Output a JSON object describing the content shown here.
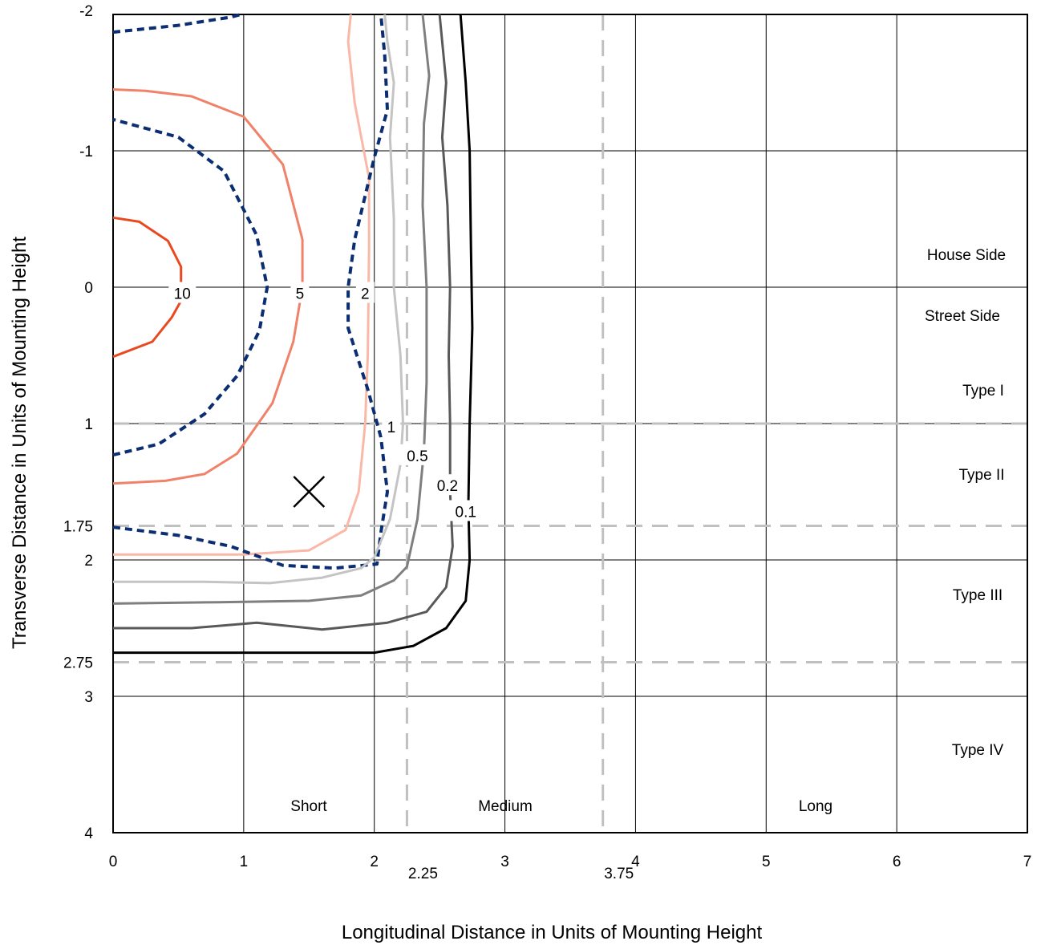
{
  "chart_data": {
    "type": "contour",
    "xlabel": "Longitudinal Distance in Units of Mounting Height",
    "ylabel": "Transverse Distance in Units of Mounting Height",
    "xlim": [
      0,
      7
    ],
    "ylim": [
      -2,
      4
    ],
    "y_axis_inverted": true,
    "grid": true,
    "x_ticks": [
      "0",
      "1",
      "2",
      "3",
      "4",
      "5",
      "6",
      "7"
    ],
    "y_ticks": [
      "-2",
      "-1",
      "0",
      "1",
      "2",
      "3",
      "4"
    ],
    "extra_x_ticks": [
      {
        "value": 2.25,
        "label": "2.25"
      },
      {
        "value": 3.75,
        "label": "3.75"
      }
    ],
    "extra_y_ticks": [
      {
        "value": 1.75,
        "label": "1.75"
      },
      {
        "value": 2.75,
        "label": "2.75"
      }
    ],
    "reference_lines": {
      "vertical": [
        2.25,
        3.75
      ],
      "horizontal": [
        1,
        1.75,
        2.75
      ],
      "color": "#c0c0c0"
    },
    "region_labels": {
      "house_side": "House Side",
      "street_side": "Street Side",
      "type_1": "Type I",
      "type_2": "Type II",
      "type_3": "Type III",
      "type_4": "Type IV",
      "short": "Short",
      "medium": "Medium",
      "long": "Long"
    },
    "max_candela_marker": {
      "x": 1.5,
      "y": 1.5,
      "symbol": "X"
    },
    "series": [
      {
        "label": "10",
        "color": "#e8491f",
        "dash": false,
        "points": [
          [
            0,
            0.51
          ],
          [
            0.3,
            0.4
          ],
          [
            0.45,
            0.22
          ],
          [
            0.52,
            0.1
          ],
          [
            0.52,
            -0.15
          ],
          [
            0.42,
            -0.34
          ],
          [
            0.2,
            -0.48
          ],
          [
            0,
            -0.51
          ]
        ],
        "label_at": [
          0.53,
          0.05
        ]
      },
      {
        "label": "5",
        "color": "#f0826a",
        "dash": false,
        "points": [
          [
            0,
            1.44
          ],
          [
            0.4,
            1.42
          ],
          [
            0.7,
            1.37
          ],
          [
            0.95,
            1.22
          ],
          [
            1.22,
            0.85
          ],
          [
            1.38,
            0.4
          ],
          [
            1.45,
            0
          ],
          [
            1.45,
            -0.35
          ],
          [
            1.3,
            -0.9
          ],
          [
            1.0,
            -1.25
          ],
          [
            0.6,
            -1.4
          ],
          [
            0.25,
            -1.44
          ],
          [
            0,
            -1.45
          ]
        ],
        "label_at": [
          1.43,
          0.05
        ]
      },
      {
        "label": "2",
        "color": "#f9b8a8",
        "dash": false,
        "points": [
          [
            0,
            1.96
          ],
          [
            0.3,
            1.96
          ],
          [
            1.0,
            1.96
          ],
          [
            1.5,
            1.93
          ],
          [
            1.78,
            1.78
          ],
          [
            1.88,
            1.5
          ],
          [
            1.93,
            1.0
          ],
          [
            1.95,
            0.5
          ],
          [
            1.96,
            -0.3
          ],
          [
            1.96,
            -0.8
          ],
          [
            1.9,
            -1.1
          ],
          [
            1.85,
            -1.35
          ],
          [
            1.8,
            -1.8
          ],
          [
            1.82,
            -2.0
          ]
        ],
        "label_at": [
          1.93,
          0.05
        ]
      },
      {
        "label": "2",
        "color": "#0b2d72",
        "dash": true,
        "points": [
          [
            0,
            1.23
          ],
          [
            0.35,
            1.15
          ],
          [
            0.7,
            0.93
          ],
          [
            0.95,
            0.65
          ],
          [
            1.12,
            0.32
          ],
          [
            1.18,
            0
          ],
          [
            1.1,
            -0.38
          ],
          [
            0.85,
            -0.85
          ],
          [
            0.5,
            -1.1
          ],
          [
            0.0,
            -1.23
          ],
          [
            0,
            -1.23
          ]
        ],
        "label_at": null
      },
      {
        "label": "",
        "color": "#0b2d72",
        "dash": true,
        "points": [
          [
            0,
            -1.87
          ],
          [
            0.5,
            -1.92
          ],
          [
            0.9,
            -1.98
          ],
          [
            0.98,
            -2.0
          ]
        ],
        "label_at": null
      },
      {
        "label": "",
        "color": "#0b2d72",
        "dash": true,
        "points": [
          [
            0,
            1.76
          ],
          [
            0.5,
            1.82
          ],
          [
            0.9,
            1.9
          ],
          [
            1.3,
            2.04
          ],
          [
            1.7,
            2.06
          ],
          [
            2.02,
            2.03
          ],
          [
            2.05,
            1.8
          ],
          [
            2.1,
            1.5
          ],
          [
            2.05,
            1.1
          ],
          [
            1.95,
            0.75
          ],
          [
            1.8,
            0.3
          ],
          [
            1.8,
            0
          ],
          [
            1.85,
            -0.35
          ],
          [
            2.0,
            -0.95
          ],
          [
            2.1,
            -1.3
          ],
          [
            2.08,
            -1.7
          ],
          [
            2.05,
            -2.0
          ]
        ],
        "label_at": null
      },
      {
        "label": "1",
        "color": "#c4c4c4",
        "dash": false,
        "points": [
          [
            0,
            2.16
          ],
          [
            0.7,
            2.16
          ],
          [
            1.2,
            2.17
          ],
          [
            1.6,
            2.13
          ],
          [
            1.9,
            2.06
          ],
          [
            2.0,
            1.98
          ],
          [
            2.12,
            1.7
          ],
          [
            2.2,
            1.3
          ],
          [
            2.22,
            1.0
          ],
          [
            2.2,
            0.5
          ],
          [
            2.15,
            0
          ],
          [
            2.15,
            -0.5
          ],
          [
            2.12,
            -1.1
          ],
          [
            2.15,
            -1.5
          ],
          [
            2.1,
            -1.8
          ],
          [
            2.08,
            -2.0
          ]
        ],
        "label_at": [
          2.13,
          1.03
        ]
      },
      {
        "label": "0.5",
        "color": "#7f7f7f",
        "dash": false,
        "points": [
          [
            0,
            2.32
          ],
          [
            0.8,
            2.31
          ],
          [
            1.5,
            2.3
          ],
          [
            1.9,
            2.26
          ],
          [
            2.15,
            2.15
          ],
          [
            2.25,
            2.05
          ],
          [
            2.33,
            1.7
          ],
          [
            2.38,
            1.2
          ],
          [
            2.4,
            0.7
          ],
          [
            2.4,
            0
          ],
          [
            2.37,
            -0.6
          ],
          [
            2.38,
            -1.2
          ],
          [
            2.42,
            -1.55
          ],
          [
            2.37,
            -2.0
          ]
        ],
        "label_at": [
          2.33,
          1.24
        ]
      },
      {
        "label": "0.2",
        "color": "#595959",
        "dash": false,
        "points": [
          [
            0,
            2.5
          ],
          [
            0.6,
            2.5
          ],
          [
            1.1,
            2.46
          ],
          [
            1.6,
            2.51
          ],
          [
            2.1,
            2.46
          ],
          [
            2.4,
            2.38
          ],
          [
            2.55,
            2.2
          ],
          [
            2.6,
            1.9
          ],
          [
            2.58,
            1.5
          ],
          [
            2.58,
            1.0
          ],
          [
            2.57,
            0.5
          ],
          [
            2.58,
            0
          ],
          [
            2.56,
            -0.6
          ],
          [
            2.52,
            -1.1
          ],
          [
            2.55,
            -1.5
          ],
          [
            2.5,
            -2.0
          ]
        ],
        "label_at": [
          2.56,
          1.46
        ]
      },
      {
        "label": "0.1",
        "color": "#000000",
        "dash": false,
        "points": [
          [
            0,
            2.68
          ],
          [
            0.7,
            2.68
          ],
          [
            1.3,
            2.68
          ],
          [
            1.7,
            2.68
          ],
          [
            2.0,
            2.68
          ],
          [
            2.3,
            2.63
          ],
          [
            2.55,
            2.5
          ],
          [
            2.7,
            2.3
          ],
          [
            2.73,
            2.0
          ],
          [
            2.72,
            1.6
          ],
          [
            2.73,
            1.0
          ],
          [
            2.75,
            0.3
          ],
          [
            2.74,
            -0.3
          ],
          [
            2.73,
            -1.0
          ],
          [
            2.7,
            -1.5
          ],
          [
            2.66,
            -2.0
          ]
        ],
        "label_at": [
          2.7,
          1.65
        ]
      }
    ]
  }
}
